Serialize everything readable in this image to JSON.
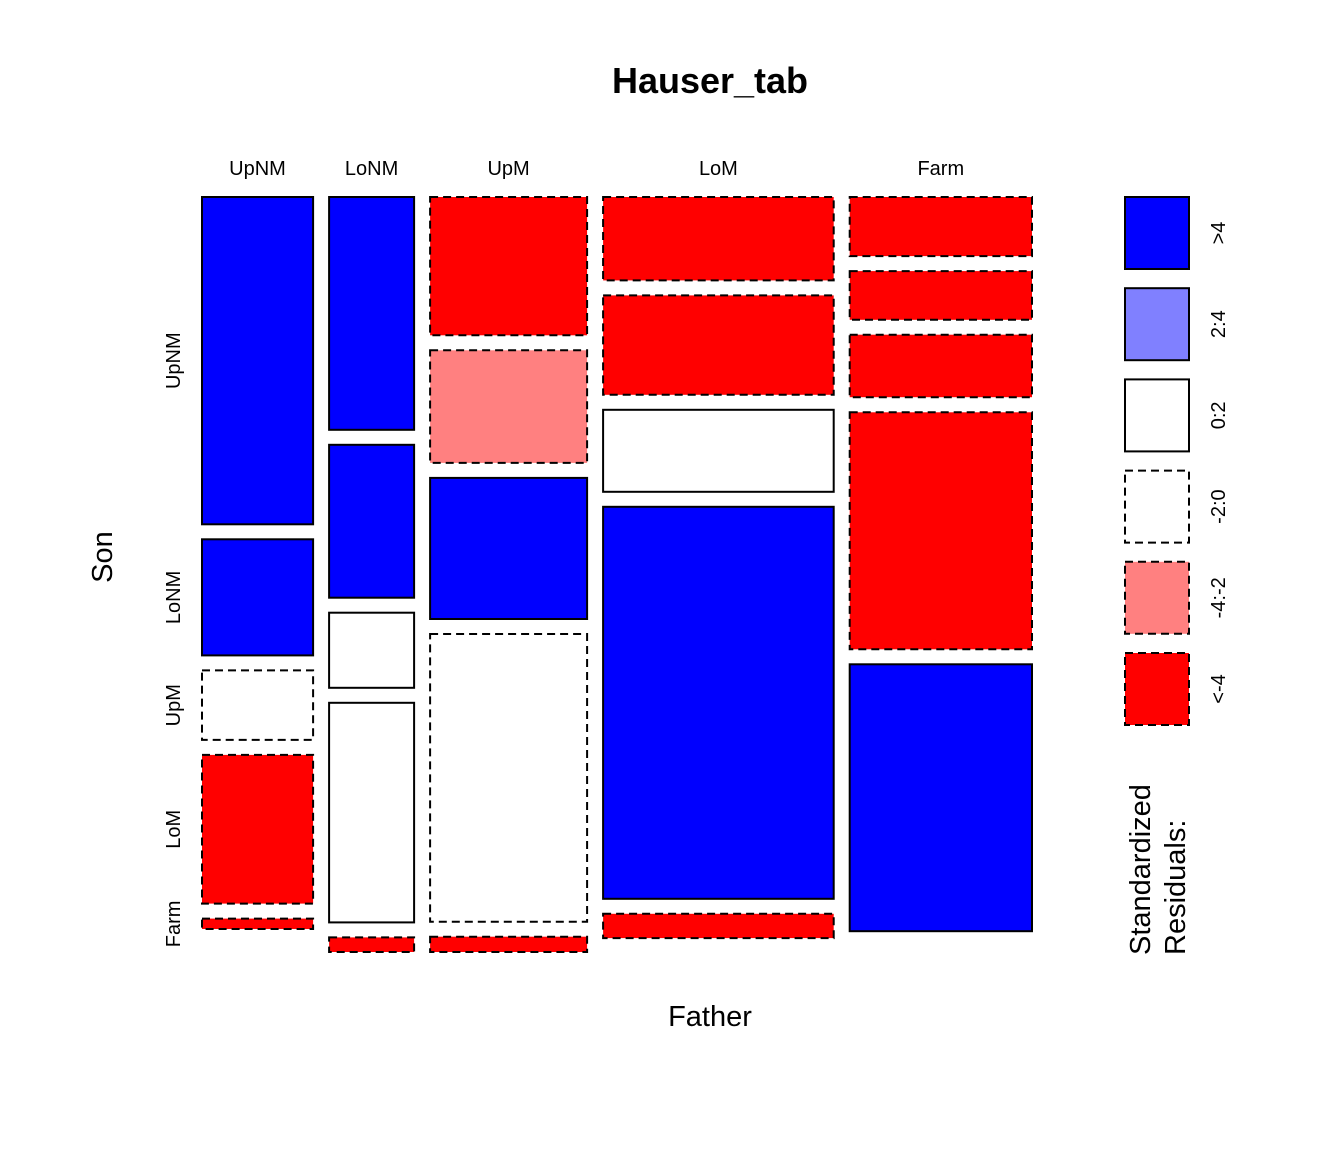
{
  "chart_data": {
    "type": "mosaic",
    "title": "Hauser_tab",
    "xlabel": "Father",
    "ylabel": "Son",
    "father_categories": [
      "UpNM",
      "LoNM",
      "UpM",
      "LoM",
      "Farm"
    ],
    "son_categories": [
      "UpNM",
      "LoNM",
      "UpM",
      "LoM",
      "Farm"
    ],
    "son_tick_labels": [
      "UpNM",
      "LoNM",
      "UpM",
      "LoM",
      "Farm"
    ],
    "column_proportions": [
      0.145,
      0.111,
      0.205,
      0.301,
      0.238
    ],
    "conditional_proportions": [
      [
        0.471,
        0.167,
        0.1,
        0.214,
        0.015
      ],
      [
        0.335,
        0.22,
        0.108,
        0.316,
        0.021
      ],
      [
        0.199,
        0.162,
        0.203,
        0.414,
        0.022
      ],
      [
        0.12,
        0.143,
        0.118,
        0.564,
        0.035
      ],
      [
        0.085,
        0.07,
        0.09,
        0.341,
        0.384
      ]
    ],
    "residual_class": [
      [
        ">4",
        ">4",
        "<-4",
        "<-4",
        "<-4"
      ],
      [
        ">4",
        ">4",
        "-4:-2",
        "<-4",
        "<-4"
      ],
      [
        "-2:0",
        "0:2",
        ">4",
        "0:2",
        "<-4"
      ],
      [
        "<-4",
        "0:2",
        "-2:0",
        ">4",
        "<-4"
      ],
      [
        "<-4",
        "<-4",
        "<-4",
        "<-4",
        ">4"
      ]
    ],
    "legend": {
      "title_line1": "Standardized",
      "title_line2": "Residuals:",
      "placement": "right",
      "items": [
        {
          "label": ">4",
          "fill": "#0000ff",
          "dashed": false
        },
        {
          "label": "2:4",
          "fill": "#8080ff",
          "dashed": false
        },
        {
          "label": "0:2",
          "fill": "#ffffff",
          "dashed": false
        },
        {
          "label": "-2:0",
          "fill": "#ffffff",
          "dashed": true
        },
        {
          "label": "-4:-2",
          "fill": "#ff8080",
          "dashed": true
        },
        {
          "label": "<-4",
          "fill": "#ff0000",
          "dashed": true
        }
      ]
    }
  }
}
